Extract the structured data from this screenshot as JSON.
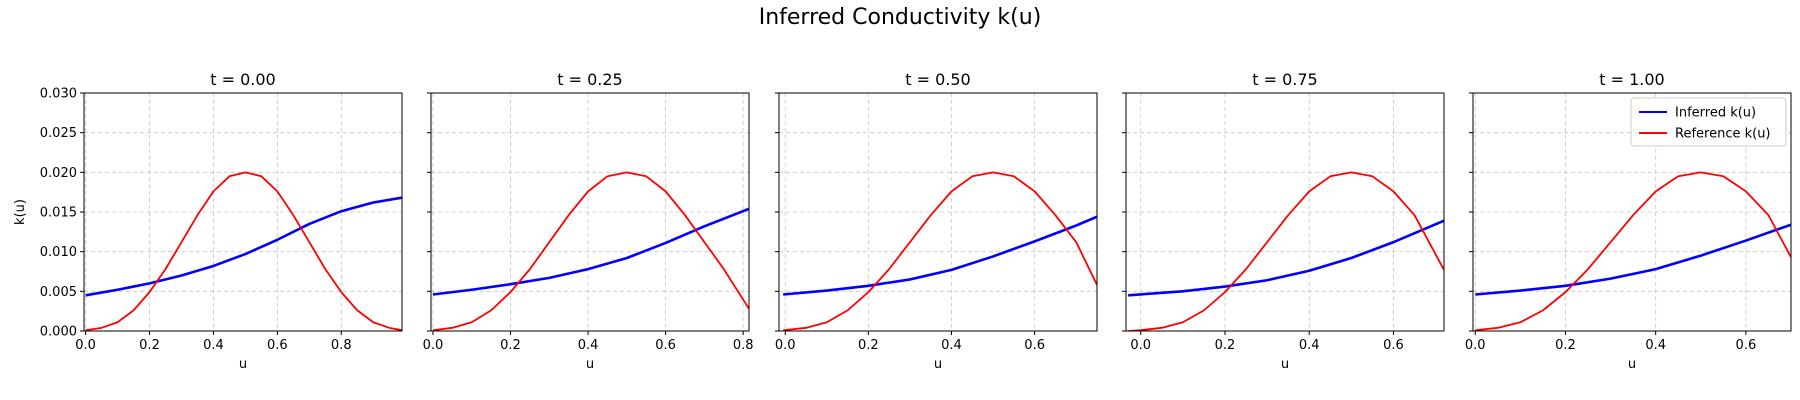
{
  "figure_title": "Inferred Conductivity k(u)",
  "colors": {
    "inferred": "#0000ff",
    "reference": "#ff0000",
    "grid": "#b0b0b0"
  },
  "chart_data": [
    {
      "type": "line",
      "title": "t = 0.00",
      "xlabel": "u",
      "ylabel": "k(u)",
      "xlim": [
        -0.005,
        0.99
      ],
      "ylim": [
        0,
        0.03
      ],
      "xticks": [
        "0.0",
        "0.2",
        "0.4",
        "0.6",
        "0.8"
      ],
      "yticks": [
        "0.000",
        "0.005",
        "0.010",
        "0.015",
        "0.020",
        "0.025",
        "0.030"
      ],
      "grid": true,
      "legend": false,
      "series": [
        {
          "name": "Inferred k(u)",
          "x": [
            0.0,
            0.1,
            0.2,
            0.3,
            0.4,
            0.5,
            0.6,
            0.7,
            0.8,
            0.9,
            0.99
          ],
          "y": [
            0.0045,
            0.0052,
            0.006,
            0.007,
            0.0082,
            0.0097,
            0.0115,
            0.0135,
            0.0151,
            0.0162,
            0.0168
          ]
        },
        {
          "name": "Reference k(u)",
          "x": [
            0.0,
            0.05,
            0.1,
            0.15,
            0.2,
            0.25,
            0.3,
            0.35,
            0.4,
            0.45,
            0.5,
            0.55,
            0.6,
            0.65,
            0.7,
            0.75,
            0.8,
            0.85,
            0.9,
            0.95,
            0.99
          ],
          "y": [
            0.0001,
            0.0004,
            0.0011,
            0.0026,
            0.0049,
            0.0078,
            0.0112,
            0.0146,
            0.0176,
            0.0195,
            0.02,
            0.0195,
            0.0176,
            0.0146,
            0.0112,
            0.0078,
            0.0049,
            0.0026,
            0.0011,
            0.0004,
            0.0001
          ]
        }
      ]
    },
    {
      "type": "line",
      "title": "t = 0.25",
      "xlabel": "u",
      "ylabel": "",
      "xlim": [
        -0.005,
        0.815
      ],
      "ylim": [
        0,
        0.03
      ],
      "xticks": [
        "0.0",
        "0.2",
        "0.4",
        "0.6",
        "0.8"
      ],
      "yticks": [
        "",
        "",
        "",
        "",
        "",
        "",
        ""
      ],
      "grid": true,
      "legend": false,
      "series": [
        {
          "name": "Inferred k(u)",
          "x": [
            0.0,
            0.1,
            0.2,
            0.3,
            0.4,
            0.5,
            0.6,
            0.7,
            0.815
          ],
          "y": [
            0.0046,
            0.0052,
            0.0059,
            0.0067,
            0.0078,
            0.0092,
            0.0111,
            0.0132,
            0.0154
          ]
        },
        {
          "name": "Reference k(u)",
          "x": [
            0.0,
            0.05,
            0.1,
            0.15,
            0.2,
            0.25,
            0.3,
            0.35,
            0.4,
            0.45,
            0.5,
            0.55,
            0.6,
            0.65,
            0.7,
            0.75,
            0.815
          ],
          "y": [
            0.0001,
            0.0004,
            0.0011,
            0.0026,
            0.0049,
            0.0078,
            0.0112,
            0.0146,
            0.0176,
            0.0195,
            0.02,
            0.0195,
            0.0176,
            0.0146,
            0.0112,
            0.0078,
            0.0028
          ]
        }
      ]
    },
    {
      "type": "line",
      "title": "t = 0.50",
      "xlabel": "u",
      "ylabel": "",
      "xlim": [
        -0.015,
        0.75
      ],
      "ylim": [
        0,
        0.03
      ],
      "xticks": [
        "0.0",
        "0.2",
        "0.4",
        "0.6"
      ],
      "yticks": [
        "",
        "",
        "",
        "",
        "",
        "",
        ""
      ],
      "grid": true,
      "legend": false,
      "series": [
        {
          "name": "Inferred k(u)",
          "x": [
            -0.005,
            0.1,
            0.2,
            0.3,
            0.4,
            0.5,
            0.6,
            0.7,
            0.75
          ],
          "y": [
            0.0046,
            0.0051,
            0.0057,
            0.0065,
            0.0077,
            0.0094,
            0.0113,
            0.0133,
            0.0144
          ]
        },
        {
          "name": "Reference k(u)",
          "x": [
            -0.005,
            0.05,
            0.1,
            0.15,
            0.2,
            0.25,
            0.3,
            0.35,
            0.4,
            0.45,
            0.5,
            0.55,
            0.6,
            0.65,
            0.7,
            0.75
          ],
          "y": [
            0.0001,
            0.0004,
            0.0011,
            0.0026,
            0.0049,
            0.0078,
            0.0112,
            0.0146,
            0.0176,
            0.0195,
            0.02,
            0.0195,
            0.0176,
            0.0146,
            0.0112,
            0.0058
          ]
        }
      ]
    },
    {
      "type": "line",
      "title": "t = 0.75",
      "xlabel": "u",
      "ylabel": "",
      "xlim": [
        -0.035,
        0.72
      ],
      "ylim": [
        0,
        0.03
      ],
      "xticks": [
        "0.0",
        "0.2",
        "0.4",
        "0.6"
      ],
      "yticks": [
        "",
        "",
        "",
        "",
        "",
        "",
        ""
      ],
      "grid": true,
      "legend": false,
      "series": [
        {
          "name": "Inferred k(u)",
          "x": [
            -0.03,
            0.1,
            0.2,
            0.3,
            0.4,
            0.5,
            0.6,
            0.72
          ],
          "y": [
            0.0045,
            0.005,
            0.0056,
            0.0064,
            0.0076,
            0.0092,
            0.0112,
            0.0139
          ]
        },
        {
          "name": "Reference k(u)",
          "x": [
            -0.03,
            0.0,
            0.05,
            0.1,
            0.15,
            0.2,
            0.25,
            0.3,
            0.35,
            0.4,
            0.45,
            0.5,
            0.55,
            0.6,
            0.65,
            0.72
          ],
          "y": [
            0.0,
            0.0001,
            0.0004,
            0.0011,
            0.0026,
            0.0049,
            0.0078,
            0.0112,
            0.0146,
            0.0176,
            0.0195,
            0.02,
            0.0195,
            0.0176,
            0.0146,
            0.0077
          ]
        }
      ]
    },
    {
      "type": "line",
      "title": "t = 1.00",
      "xlabel": "u",
      "ylabel": "",
      "xlim": [
        -0.005,
        0.7
      ],
      "ylim": [
        0,
        0.03
      ],
      "xticks": [
        "0.0",
        "0.2",
        "0.4",
        "0.6"
      ],
      "yticks": [
        "",
        "",
        "",
        "",
        "",
        "",
        ""
      ],
      "grid": true,
      "legend": "upper right",
      "series": [
        {
          "name": "Inferred k(u)",
          "x": [
            0.0,
            0.1,
            0.2,
            0.3,
            0.4,
            0.5,
            0.6,
            0.7
          ],
          "y": [
            0.0046,
            0.0051,
            0.0057,
            0.0066,
            0.0078,
            0.0095,
            0.0114,
            0.0134
          ]
        },
        {
          "name": "Reference k(u)",
          "x": [
            0.0,
            0.05,
            0.1,
            0.15,
            0.2,
            0.25,
            0.3,
            0.35,
            0.4,
            0.45,
            0.5,
            0.55,
            0.6,
            0.65,
            0.7
          ],
          "y": [
            0.0001,
            0.0004,
            0.0011,
            0.0026,
            0.0049,
            0.0078,
            0.0112,
            0.0146,
            0.0176,
            0.0195,
            0.02,
            0.0195,
            0.0176,
            0.0146,
            0.0093
          ]
        }
      ]
    }
  ]
}
